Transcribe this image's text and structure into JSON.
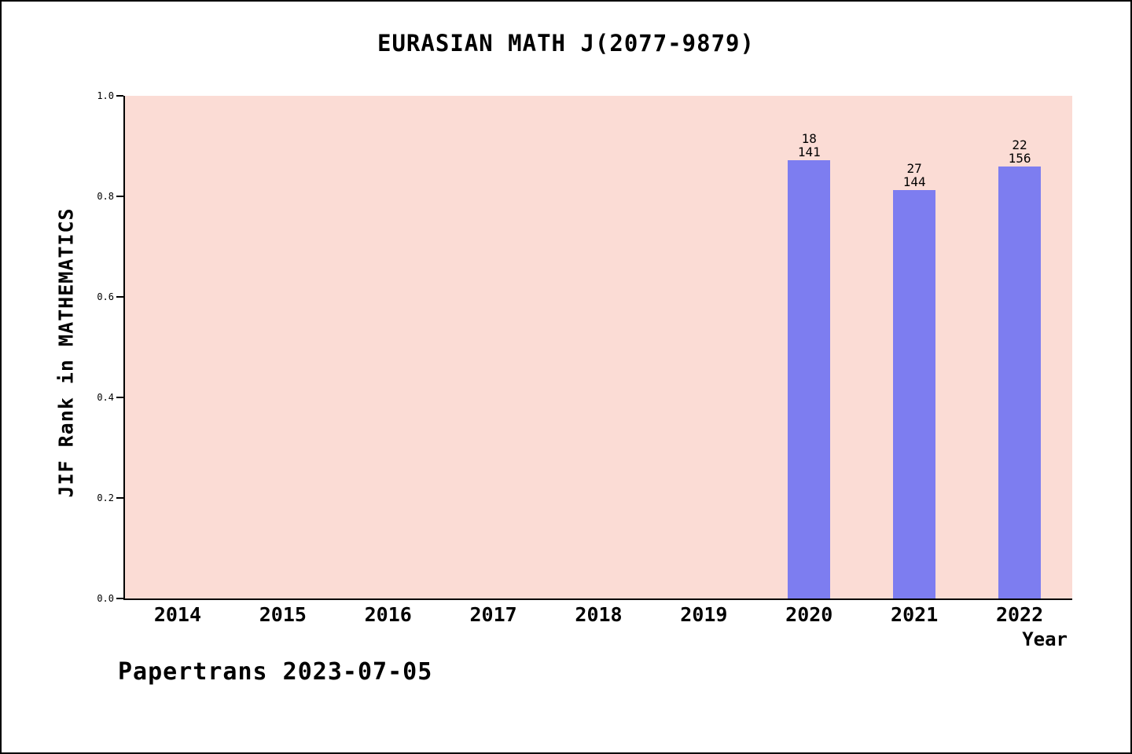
{
  "page": {
    "footer": "Papertrans 2023-07-05"
  },
  "chart_data": {
    "type": "bar",
    "title": "EURASIAN MATH J(2077-9879)",
    "xlabel": "Year",
    "ylabel": "JIF Rank in MATHEMATICS",
    "categories": [
      "2014",
      "2015",
      "2016",
      "2017",
      "2018",
      "2019",
      "2020",
      "2021",
      "2022"
    ],
    "values": [
      null,
      null,
      null,
      null,
      null,
      null,
      0.872,
      0.8125,
      0.859
    ],
    "bar_labels": [
      null,
      null,
      null,
      null,
      null,
      null,
      [
        "18",
        "141"
      ],
      [
        "27",
        "144"
      ],
      [
        "22",
        "156"
      ]
    ],
    "annotations": [
      {
        "year": "2020",
        "rank": 18,
        "out_of": 141
      },
      {
        "year": "2021",
        "rank": 27,
        "out_of": 144
      },
      {
        "year": "2022",
        "rank": 22,
        "out_of": 156
      }
    ],
    "ylim": [
      0,
      1
    ],
    "yticks": [
      "0.0",
      "0.2",
      "0.4",
      "0.6",
      "0.8",
      "1.0"
    ],
    "grid": false,
    "legend": "none",
    "colors": {
      "bar_fill": "#7d7df0",
      "plot_background": "#fbdcd5",
      "axis": "#000000",
      "page_background": "#ffffff"
    }
  }
}
